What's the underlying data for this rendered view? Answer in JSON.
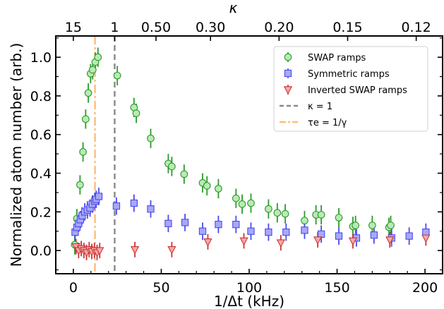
{
  "chart_data": {
    "type": "scatter",
    "xlabel": "1/Δt (kHz)",
    "ylabel": "Normalized atom number (arb.)",
    "top_axis_label": "κ",
    "xlim": [
      -10,
      210
    ],
    "ylim": [
      -0.12,
      1.11
    ],
    "x_ticks": [
      0,
      50,
      100,
      150,
      200
    ],
    "y_ticks": [
      0.0,
      0.2,
      0.4,
      0.6,
      0.8,
      1.0
    ],
    "x_tick_labels": [
      "0",
      "50",
      "100",
      "150",
      "200"
    ],
    "y_tick_labels": [
      "0.0",
      "0.2",
      "0.4",
      "0.6",
      "0.8",
      "1.0"
    ],
    "top_ticks": [
      {
        "label": "15",
        "x": 0
      },
      {
        "label": "1",
        "x": 23.5
      },
      {
        "label": "0.50",
        "x": 47
      },
      {
        "label": "0.30",
        "x": 78
      },
      {
        "label": "0.20",
        "x": 117
      },
      {
        "label": "0.15",
        "x": 156
      },
      {
        "label": "0.12",
        "x": 195
      }
    ],
    "grid": false,
    "legend_position": "upper-right",
    "vlines": [
      {
        "name": "κ = 1",
        "x": 23.5,
        "color": "#888888",
        "style": "dashed"
      },
      {
        "name": "τe = 1/γ",
        "x": 12.3,
        "color": "#ffbb77",
        "style": "dashdot"
      }
    ],
    "series": [
      {
        "name": "SWAP ramps",
        "marker": "circle",
        "face_color": "#b9eab4",
        "edge_color": "#2a9a2a",
        "points": [
          {
            "x": 0.8,
            "y": 0.03,
            "err": 0.05
          },
          {
            "x": 2.0,
            "y": 0.165,
            "err": 0.05
          },
          {
            "x": 3.8,
            "y": 0.34,
            "err": 0.05
          },
          {
            "x": 5.5,
            "y": 0.51,
            "err": 0.05
          },
          {
            "x": 7.0,
            "y": 0.68,
            "err": 0.05
          },
          {
            "x": 8.5,
            "y": 0.815,
            "err": 0.05
          },
          {
            "x": 9.8,
            "y": 0.915,
            "err": 0.05
          },
          {
            "x": 11.0,
            "y": 0.935,
            "err": 0.05
          },
          {
            "x": 12.5,
            "y": 0.975,
            "err": 0.05
          },
          {
            "x": 14.0,
            "y": 1.0,
            "err": 0.05
          },
          {
            "x": 25.0,
            "y": 0.905,
            "err": 0.05
          },
          {
            "x": 34.5,
            "y": 0.74,
            "err": 0.05
          },
          {
            "x": 35.8,
            "y": 0.71,
            "err": 0.05
          },
          {
            "x": 44.0,
            "y": 0.58,
            "err": 0.05
          },
          {
            "x": 54.0,
            "y": 0.45,
            "err": 0.05
          },
          {
            "x": 56.0,
            "y": 0.435,
            "err": 0.05
          },
          {
            "x": 63.0,
            "y": 0.395,
            "err": 0.05
          },
          {
            "x": 73.5,
            "y": 0.35,
            "err": 0.05
          },
          {
            "x": 76.0,
            "y": 0.335,
            "err": 0.05
          },
          {
            "x": 82.5,
            "y": 0.32,
            "err": 0.05
          },
          {
            "x": 92.5,
            "y": 0.27,
            "err": 0.05
          },
          {
            "x": 96.0,
            "y": 0.24,
            "err": 0.05
          },
          {
            "x": 101.0,
            "y": 0.245,
            "err": 0.05
          },
          {
            "x": 111.0,
            "y": 0.215,
            "err": 0.05
          },
          {
            "x": 116.0,
            "y": 0.195,
            "err": 0.05
          },
          {
            "x": 120.5,
            "y": 0.19,
            "err": 0.05
          },
          {
            "x": 131.5,
            "y": 0.155,
            "err": 0.05
          },
          {
            "x": 138.0,
            "y": 0.185,
            "err": 0.05
          },
          {
            "x": 141.0,
            "y": 0.185,
            "err": 0.05
          },
          {
            "x": 151.0,
            "y": 0.17,
            "err": 0.05
          },
          {
            "x": 159.0,
            "y": 0.125,
            "err": 0.05
          },
          {
            "x": 160.5,
            "y": 0.13,
            "err": 0.05
          },
          {
            "x": 170.0,
            "y": 0.13,
            "err": 0.05
          },
          {
            "x": 179.5,
            "y": 0.12,
            "err": 0.05
          },
          {
            "x": 180.5,
            "y": 0.13,
            "err": 0.05
          }
        ]
      },
      {
        "name": "Symmetric ramps",
        "marker": "square",
        "face_color": "#a8a8f5",
        "edge_color": "#4a4aee",
        "points": [
          {
            "x": 1.0,
            "y": 0.095,
            "err": 0.045
          },
          {
            "x": 2.0,
            "y": 0.12,
            "err": 0.045
          },
          {
            "x": 3.0,
            "y": 0.14,
            "err": 0.045
          },
          {
            "x": 4.0,
            "y": 0.16,
            "err": 0.045
          },
          {
            "x": 5.0,
            "y": 0.18,
            "err": 0.045
          },
          {
            "x": 6.5,
            "y": 0.2,
            "err": 0.045
          },
          {
            "x": 8.0,
            "y": 0.21,
            "err": 0.045
          },
          {
            "x": 9.5,
            "y": 0.22,
            "err": 0.045
          },
          {
            "x": 10.8,
            "y": 0.24,
            "err": 0.045
          },
          {
            "x": 12.2,
            "y": 0.255,
            "err": 0.045
          },
          {
            "x": 13.0,
            "y": 0.265,
            "err": 0.045
          },
          {
            "x": 14.5,
            "y": 0.28,
            "err": 0.045
          },
          {
            "x": 24.5,
            "y": 0.23,
            "err": 0.045
          },
          {
            "x": 34.5,
            "y": 0.245,
            "err": 0.045
          },
          {
            "x": 44.0,
            "y": 0.215,
            "err": 0.045
          },
          {
            "x": 54.0,
            "y": 0.14,
            "err": 0.045
          },
          {
            "x": 63.5,
            "y": 0.145,
            "err": 0.045
          },
          {
            "x": 73.5,
            "y": 0.1,
            "err": 0.045
          },
          {
            "x": 82.5,
            "y": 0.135,
            "err": 0.045
          },
          {
            "x": 92.5,
            "y": 0.135,
            "err": 0.045
          },
          {
            "x": 101.0,
            "y": 0.1,
            "err": 0.045
          },
          {
            "x": 111.0,
            "y": 0.095,
            "err": 0.045
          },
          {
            "x": 121.0,
            "y": 0.095,
            "err": 0.045
          },
          {
            "x": 131.5,
            "y": 0.105,
            "err": 0.045
          },
          {
            "x": 141.0,
            "y": 0.085,
            "err": 0.045
          },
          {
            "x": 151.0,
            "y": 0.075,
            "err": 0.045
          },
          {
            "x": 161.0,
            "y": 0.065,
            "err": 0.045
          },
          {
            "x": 171.0,
            "y": 0.08,
            "err": 0.045
          },
          {
            "x": 181.0,
            "y": 0.065,
            "err": 0.045
          },
          {
            "x": 191.0,
            "y": 0.075,
            "err": 0.045
          },
          {
            "x": 200.5,
            "y": 0.095,
            "err": 0.045
          }
        ]
      },
      {
        "name": "Inverted SWAP ramps",
        "marker": "triangle-down",
        "face_color": "#f5a9a9",
        "edge_color": "#cc3333",
        "points": [
          {
            "x": 1.5,
            "y": 0.02,
            "err": 0.04
          },
          {
            "x": 3.0,
            "y": 0.0,
            "err": 0.04
          },
          {
            "x": 4.5,
            "y": 0.01,
            "err": 0.04
          },
          {
            "x": 6.0,
            "y": 0.0,
            "err": 0.04
          },
          {
            "x": 7.5,
            "y": -0.01,
            "err": 0.04
          },
          {
            "x": 9.0,
            "y": 0.005,
            "err": 0.04
          },
          {
            "x": 10.5,
            "y": -0.005,
            "err": 0.04
          },
          {
            "x": 12.0,
            "y": 0.0,
            "err": 0.04
          },
          {
            "x": 13.5,
            "y": -0.01,
            "err": 0.04
          },
          {
            "x": 15.0,
            "y": 0.0,
            "err": 0.04
          },
          {
            "x": 35.0,
            "y": 0.005,
            "err": 0.04
          },
          {
            "x": 56.0,
            "y": 0.005,
            "err": 0.04
          },
          {
            "x": 76.5,
            "y": 0.045,
            "err": 0.04
          },
          {
            "x": 97.0,
            "y": 0.05,
            "err": 0.04
          },
          {
            "x": 118.0,
            "y": 0.04,
            "err": 0.04
          },
          {
            "x": 139.0,
            "y": 0.055,
            "err": 0.04
          },
          {
            "x": 159.0,
            "y": 0.05,
            "err": 0.04
          },
          {
            "x": 180.0,
            "y": 0.055,
            "err": 0.04
          },
          {
            "x": 200.5,
            "y": 0.065,
            "err": 0.04
          }
        ]
      }
    ]
  }
}
